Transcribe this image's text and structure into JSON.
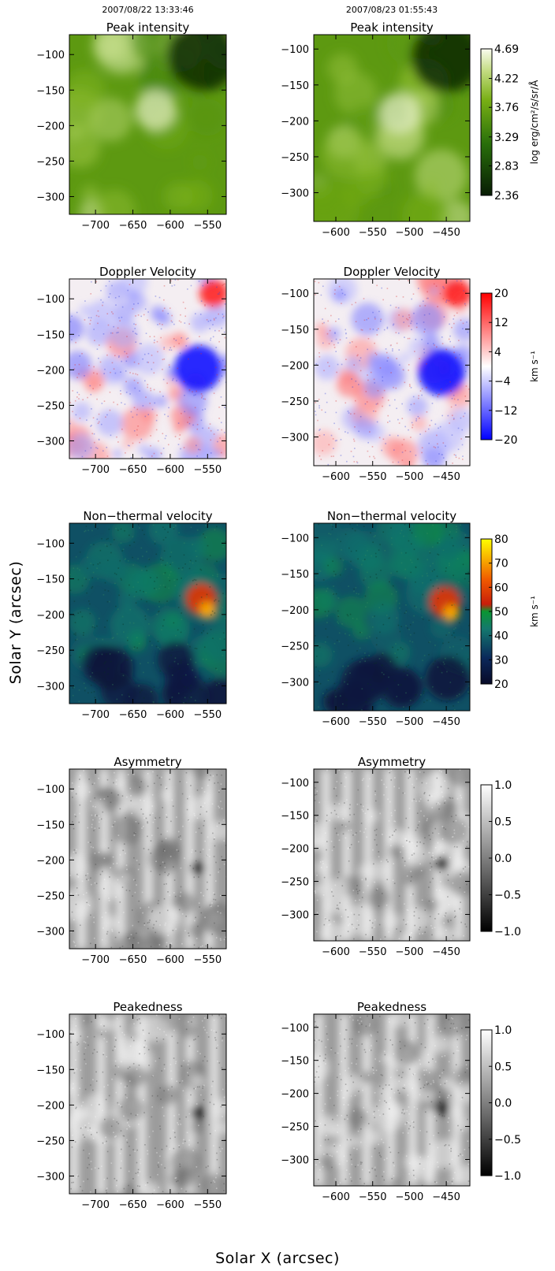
{
  "figure": {
    "xlabel": "Solar X (arcsec)",
    "ylabel": "Solar Y (arcsec)",
    "timestamps": [
      "2007/08/22 13:33:46",
      "2007/08/23 01:55:43"
    ]
  },
  "chart_data": [
    {
      "type": "heatmap",
      "row": 0,
      "col": 0,
      "title": "Peak intensity",
      "timestamp": "2007/08/22 13:33:46",
      "xlim": [
        -735,
        -525
      ],
      "ylim": [
        -325,
        -72
      ],
      "xticks": [
        -700,
        -650,
        -600,
        -550
      ],
      "yticks": [
        -100,
        -150,
        -200,
        -250,
        -300
      ],
      "colormap": "green",
      "colorbar": null
    },
    {
      "type": "heatmap",
      "row": 0,
      "col": 1,
      "title": "Peak intensity",
      "timestamp": "2007/08/23 01:55:43",
      "xlim": [
        -630,
        -418
      ],
      "ylim": [
        -340,
        -80
      ],
      "xticks": [
        -600,
        -550,
        -500,
        -450
      ],
      "yticks": [
        -100,
        -150,
        -200,
        -250,
        -300
      ],
      "colormap": "green",
      "colorbar": {
        "min": 2.36,
        "max": 4.69,
        "ticks": [
          2.36,
          2.83,
          3.29,
          3.76,
          4.22,
          4.69
        ],
        "tick_labels": [
          "2.36",
          "2.83",
          "3.29",
          "3.76",
          "4.22",
          "4.69"
        ],
        "unit": "log erg/cm²/s/sr/Å"
      }
    },
    {
      "type": "heatmap",
      "row": 1,
      "col": 0,
      "title": "Doppler Velocity",
      "xlim": [
        -735,
        -525
      ],
      "ylim": [
        -325,
        -72
      ],
      "xticks": [
        -700,
        -650,
        -600,
        -550
      ],
      "yticks": [
        -100,
        -150,
        -200,
        -250,
        -300
      ],
      "colormap": "bwr",
      "colorbar": null
    },
    {
      "type": "heatmap",
      "row": 1,
      "col": 1,
      "title": "Doppler Velocity",
      "xlim": [
        -630,
        -418
      ],
      "ylim": [
        -340,
        -80
      ],
      "xticks": [
        -600,
        -550,
        -500,
        -450
      ],
      "yticks": [
        -100,
        -150,
        -200,
        -250,
        -300
      ],
      "colormap": "bwr",
      "colorbar": {
        "min": -20,
        "max": 20,
        "ticks": [
          -20,
          -12,
          -4,
          4,
          12,
          20
        ],
        "tick_labels": [
          "−20",
          "−12",
          "−4",
          "4",
          "12",
          "20"
        ],
        "unit": "km s⁻¹"
      }
    },
    {
      "type": "heatmap",
      "row": 2,
      "col": 0,
      "title": "Non−thermal velocity",
      "xlim": [
        -735,
        -525
      ],
      "ylim": [
        -325,
        -72
      ],
      "xticks": [
        -700,
        -650,
        -600,
        -550
      ],
      "yticks": [
        -100,
        -150,
        -200,
        -250,
        -300
      ],
      "colormap": "thermal",
      "colorbar": null
    },
    {
      "type": "heatmap",
      "row": 2,
      "col": 1,
      "title": "Non−thermal velocity",
      "xlim": [
        -630,
        -418
      ],
      "ylim": [
        -340,
        -80
      ],
      "xticks": [
        -600,
        -550,
        -500,
        -450
      ],
      "yticks": [
        -100,
        -150,
        -200,
        -250,
        -300
      ],
      "colormap": "thermal",
      "colorbar": {
        "min": 20,
        "max": 80,
        "ticks": [
          20,
          30,
          40,
          50,
          60,
          70,
          80
        ],
        "tick_labels": [
          "20",
          "30",
          "40",
          "50",
          "60",
          "70",
          "80"
        ],
        "unit": "km s⁻¹"
      }
    },
    {
      "type": "heatmap",
      "row": 3,
      "col": 0,
      "title": "Asymmetry",
      "xlim": [
        -735,
        -525
      ],
      "ylim": [
        -325,
        -72
      ],
      "xticks": [
        -700,
        -650,
        -600,
        -550
      ],
      "yticks": [
        -100,
        -150,
        -200,
        -250,
        -300
      ],
      "colormap": "gray",
      "colorbar": null
    },
    {
      "type": "heatmap",
      "row": 3,
      "col": 1,
      "title": "Asymmetry",
      "xlim": [
        -630,
        -418
      ],
      "ylim": [
        -340,
        -80
      ],
      "xticks": [
        -600,
        -550,
        -500,
        -450
      ],
      "yticks": [
        -100,
        -150,
        -200,
        -250,
        -300
      ],
      "colormap": "gray",
      "colorbar": {
        "min": -1.0,
        "max": 1.0,
        "ticks": [
          -1.0,
          -0.5,
          0.0,
          0.5,
          1.0
        ],
        "tick_labels": [
          "−1.0",
          "−0.5",
          "0.0",
          "0.5",
          "1.0"
        ],
        "unit": ""
      }
    },
    {
      "type": "heatmap",
      "row": 4,
      "col": 0,
      "title": "Peakedness",
      "xlim": [
        -735,
        -525
      ],
      "ylim": [
        -325,
        -72
      ],
      "xticks": [
        -700,
        -650,
        -600,
        -550
      ],
      "yticks": [
        -100,
        -150,
        -200,
        -250,
        -300
      ],
      "colormap": "gray",
      "colorbar": null
    },
    {
      "type": "heatmap",
      "row": 4,
      "col": 1,
      "title": "Peakedness",
      "xlim": [
        -630,
        -418
      ],
      "ylim": [
        -340,
        -80
      ],
      "xticks": [
        -600,
        -550,
        -500,
        -450
      ],
      "yticks": [
        -100,
        -150,
        -200,
        -250,
        -300
      ],
      "colormap": "gray",
      "colorbar": {
        "min": -1.0,
        "max": 1.0,
        "ticks": [
          -1.0,
          -0.5,
          0.0,
          0.5,
          1.0
        ],
        "tick_labels": [
          "−1.0",
          "−0.5",
          "0.0",
          "0.5",
          "1.0"
        ],
        "unit": ""
      }
    }
  ]
}
